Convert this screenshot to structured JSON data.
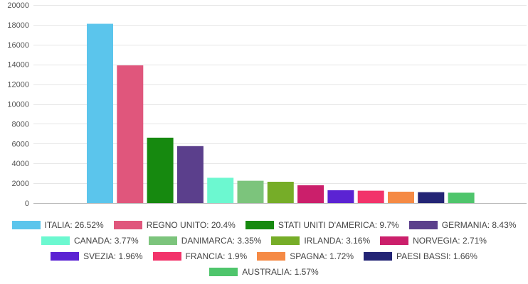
{
  "chart_data": {
    "type": "bar",
    "categories": [
      "ITALIA",
      "REGNO UNITO",
      "STATI UNITI D'AMERICA",
      "GERMANIA",
      "CANADA",
      "DANIMARCA",
      "IRLANDA",
      "NORVEGIA",
      "SVEZIA",
      "FRANCIA",
      "SPAGNA",
      "PAESI BASSI",
      "AUSTRALIA"
    ],
    "values": [
      18100,
      13900,
      6600,
      5750,
      2550,
      2250,
      2150,
      1800,
      1300,
      1250,
      1150,
      1100,
      1050
    ],
    "colors": [
      "#5bc5ec",
      "#e0567c",
      "#16890f",
      "#5b3f8c",
      "#6cf8d0",
      "#7cc47c",
      "#76ad28",
      "#cb1f6b",
      "#5b23d3",
      "#f2336a",
      "#f58a45",
      "#232475",
      "#4fc56c"
    ],
    "yticks": [
      "0",
      "2000",
      "4000",
      "6000",
      "8000",
      "10000",
      "12000",
      "14000",
      "16000",
      "18000",
      "20000"
    ],
    "ylim": [
      0,
      20000
    ],
    "grid": true,
    "legend_placement": "bottom",
    "title": "",
    "xlabel": "",
    "ylabel": ""
  },
  "legend": {
    "rows": [
      [
        {
          "label": "ITALIA: 26.52%",
          "color": "#5bc5ec"
        },
        {
          "label": "REGNO UNITO: 20.4%",
          "color": "#e0567c"
        },
        {
          "label": "STATI UNITI D'AMERICA: 9.7%",
          "color": "#16890f"
        },
        {
          "label": "GERMANIA: 8.43%",
          "color": "#5b3f8c"
        }
      ],
      [
        {
          "label": "CANADA: 3.77%",
          "color": "#6cf8d0"
        },
        {
          "label": "DANIMARCA: 3.35%",
          "color": "#7cc47c"
        },
        {
          "label": "IRLANDA: 3.16%",
          "color": "#76ad28"
        },
        {
          "label": "NORVEGIA: 2.71%",
          "color": "#cb1f6b"
        }
      ],
      [
        {
          "label": "SVEZIA: 1.96%",
          "color": "#5b23d3"
        },
        {
          "label": "FRANCIA: 1.9%",
          "color": "#f2336a"
        },
        {
          "label": "SPAGNA: 1.72%",
          "color": "#f58a45"
        },
        {
          "label": "PAESI BASSI: 1.66%",
          "color": "#232475"
        }
      ],
      [
        {
          "label": "AUSTRALIA: 1.57%",
          "color": "#4fc56c"
        }
      ]
    ]
  }
}
